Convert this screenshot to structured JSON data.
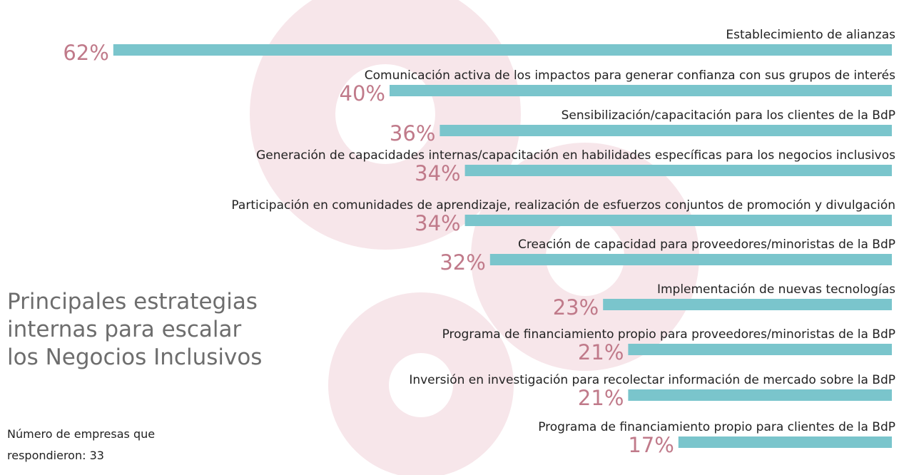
{
  "chart_data": {
    "type": "bar",
    "title": "Principales estrategias internas para escalar los Negocios Inclusivos",
    "subtitle": "Número de empresas que respondieron: 33",
    "categories": [
      "Establecimiento de alianzas",
      "Comunicación activa de los impactos para generar confianza con sus grupos de interés",
      "Sensibilización/capacitación para los clientes de la BdP",
      "Generación de capacidades internas/capacitación en habilidades específicas para los negocios inclusivos",
      "Participación en comunidades de aprendizaje, realización de esfuerzos conjuntos de promoción y divulgación",
      "Creación de capacidad para proveedores/minoristas de la BdP",
      "Implementación de nuevas tecnologías",
      "Programa de financiamiento propio para proveedores/minoristas de la BdP",
      "Inversión en investigación para recolectar información de mercado sobre la BdP",
      "Programa de financiamiento propio para clientes de la BdP"
    ],
    "values": [
      62,
      40,
      36,
      34,
      34,
      32,
      23,
      21,
      21,
      17
    ],
    "value_labels": [
      "62%",
      "40%",
      "36%",
      "34%",
      "34%",
      "32%",
      "23%",
      "21%",
      "21%",
      "17%"
    ],
    "color": "#7ac5cc",
    "label_color": "#c07a8a"
  }
}
